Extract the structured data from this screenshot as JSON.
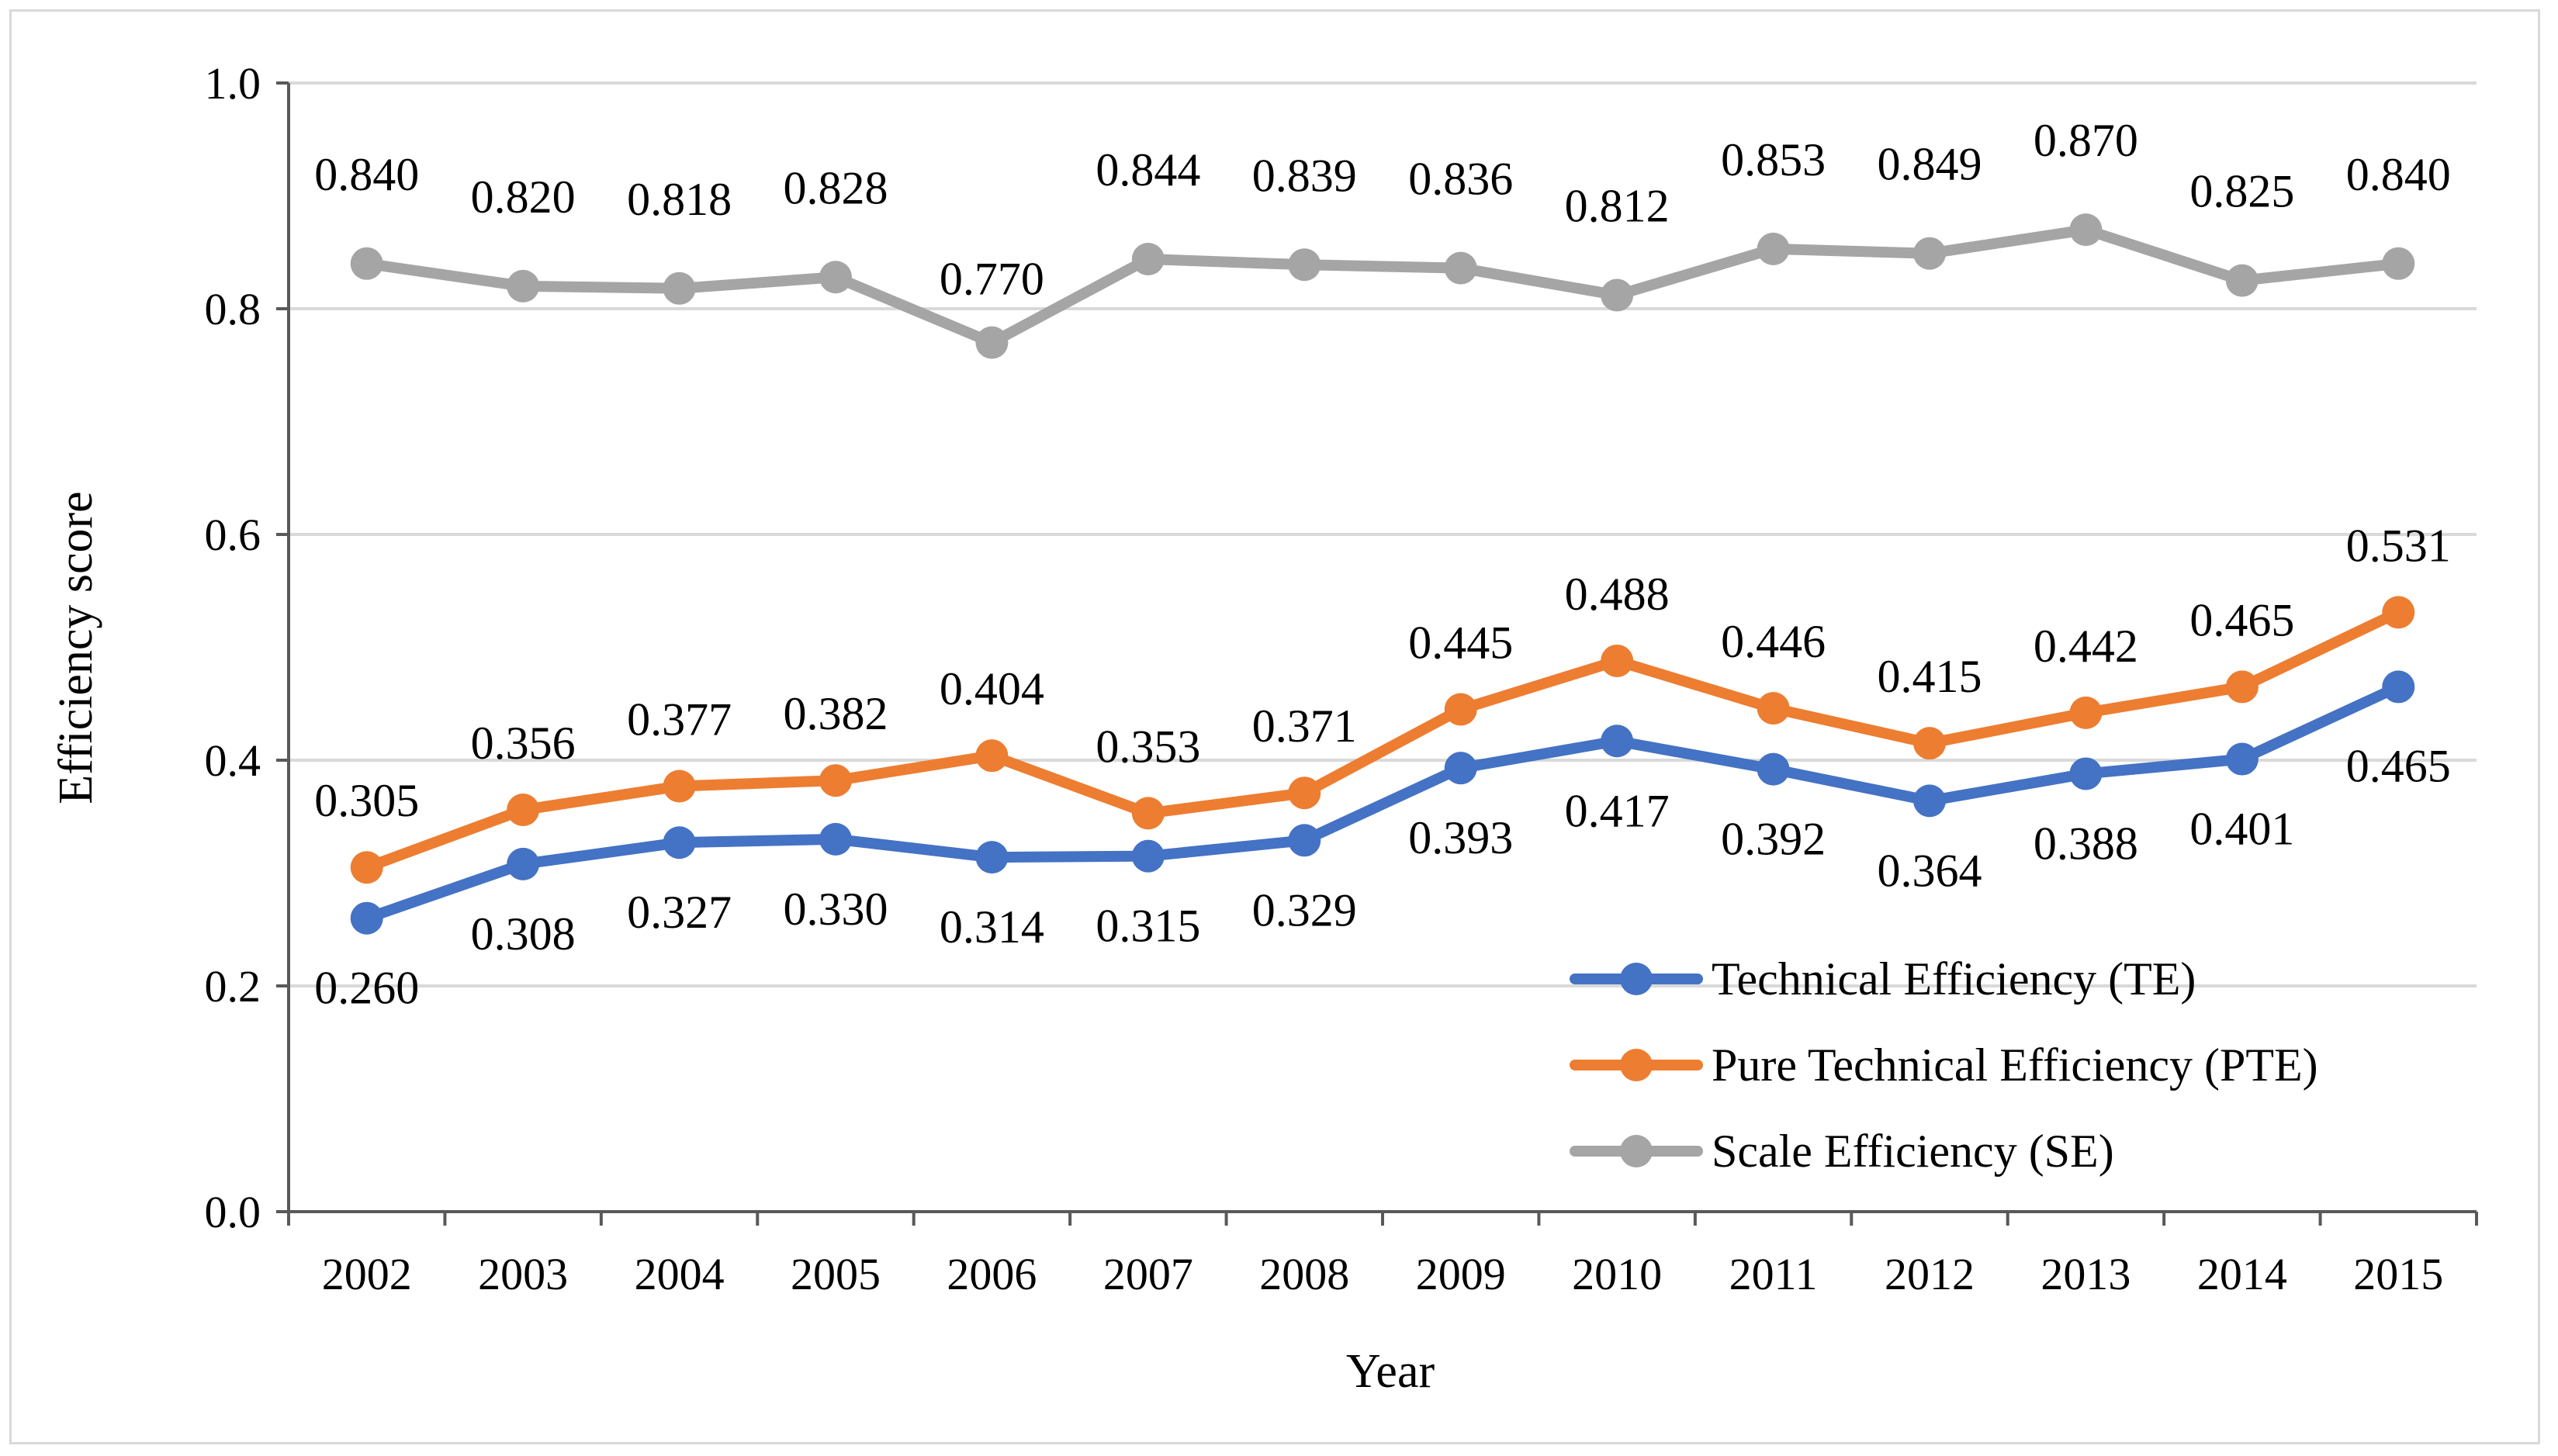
{
  "chart_data": {
    "type": "line",
    "title": "",
    "xlabel": "Year",
    "ylabel": "Efficiency score",
    "ylim": [
      0.0,
      1.0
    ],
    "yticks": [
      "0.0",
      "0.2",
      "0.4",
      "0.6",
      "0.8",
      "1.0"
    ],
    "grid": true,
    "legend_position": "bottom-right",
    "categories": [
      "2002",
      "2003",
      "2004",
      "2005",
      "2006",
      "2007",
      "2008",
      "2009",
      "2010",
      "2011",
      "2012",
      "2013",
      "2014",
      "2015"
    ],
    "series": [
      {
        "name": "Technical Efficiency (TE)",
        "color": "#4472C4",
        "values": [
          0.26,
          0.308,
          0.327,
          0.33,
          0.314,
          0.315,
          0.329,
          0.393,
          0.417,
          0.392,
          0.364,
          0.388,
          0.401,
          0.465
        ],
        "labels": [
          "0.260",
          "0.308",
          "0.327",
          "0.330",
          "0.314",
          "0.315",
          "0.329",
          "0.393",
          "0.417",
          "0.392",
          "0.364",
          "0.388",
          "0.401",
          "0.465"
        ]
      },
      {
        "name": "Pure Technical Efficiency (PTE)",
        "color": "#ED7D31",
        "values": [
          0.305,
          0.356,
          0.377,
          0.382,
          0.404,
          0.353,
          0.371,
          0.445,
          0.488,
          0.446,
          0.415,
          0.442,
          0.465,
          0.531
        ],
        "labels": [
          "0.305",
          "0.356",
          "0.377",
          "0.382",
          "0.404",
          "0.353",
          "0.371",
          "0.445",
          "0.488",
          "0.446",
          "0.415",
          "0.442",
          "0.465",
          "0.531"
        ]
      },
      {
        "name": "Scale Efficiency (SE)",
        "color": "#A5A5A5",
        "values": [
          0.84,
          0.82,
          0.818,
          0.828,
          0.77,
          0.844,
          0.839,
          0.836,
          0.812,
          0.853,
          0.849,
          0.87,
          0.825,
          0.84
        ],
        "labels": [
          "0.840",
          "0.820",
          "0.818",
          "0.828",
          "0.770",
          "0.844",
          "0.839",
          "0.836",
          "0.812",
          "0.853",
          "0.849",
          "0.870",
          "0.825",
          "0.840"
        ]
      }
    ]
  }
}
